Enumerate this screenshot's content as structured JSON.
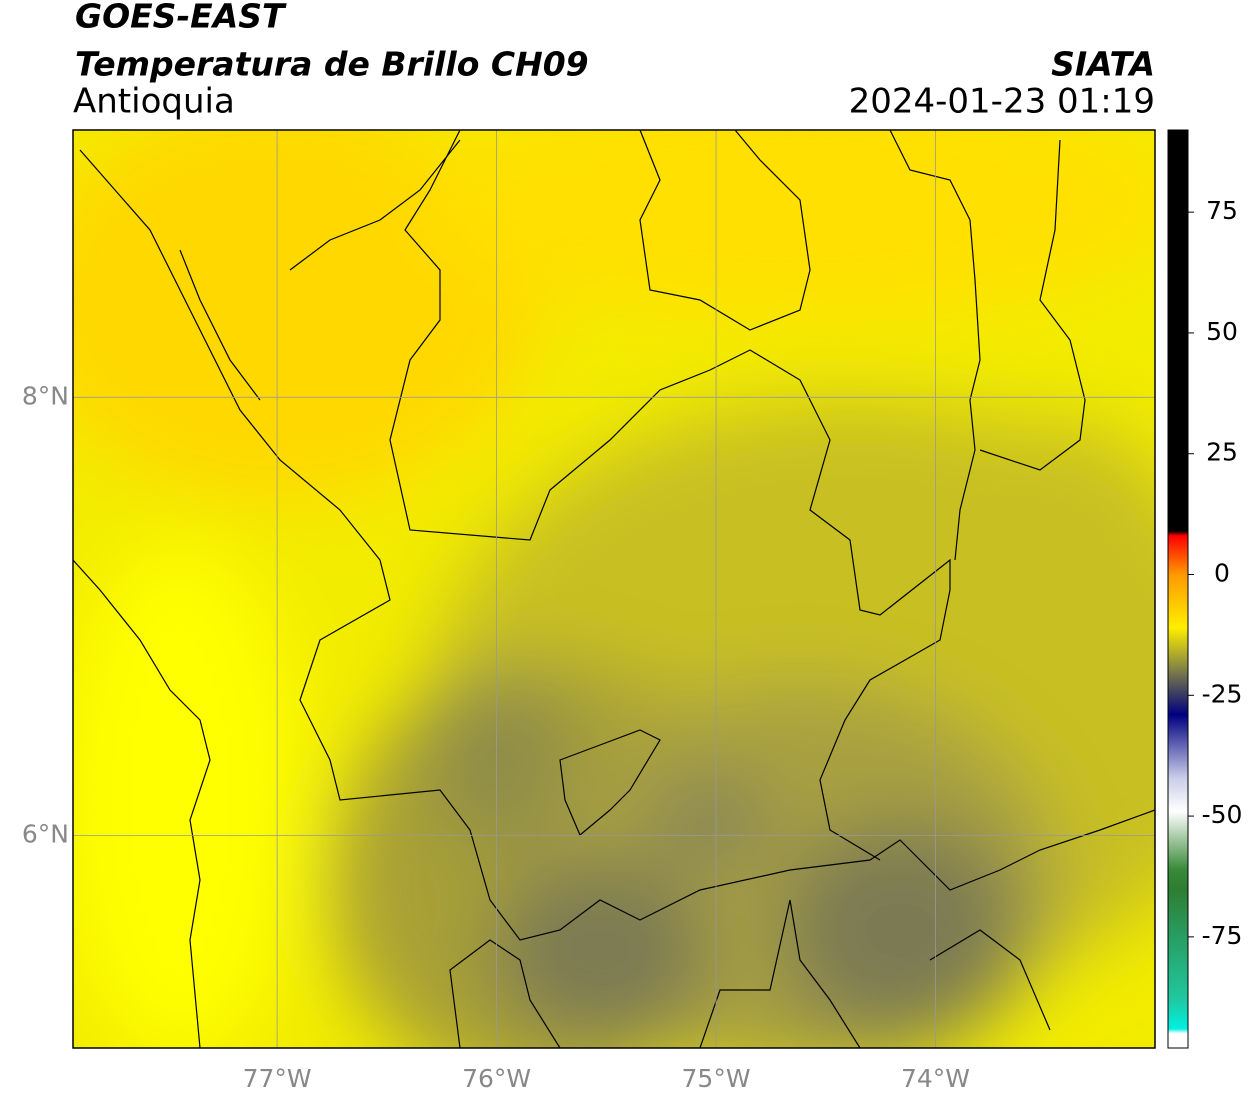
{
  "chart_data": {
    "type": "map",
    "title": "GOES-EAST",
    "subtitle": "Temperatura de Brillo CH09",
    "region": "Antioquia",
    "source": "SIATA",
    "datetime": "2024-01-23 01:19",
    "xlim": [
      -77.93,
      -73.0
    ],
    "ylim": [
      5.03,
      9.22
    ],
    "xticks": [
      {
        "value": -77,
        "label": "77°W"
      },
      {
        "value": -76,
        "label": "76°W"
      },
      {
        "value": -75,
        "label": "75°W"
      },
      {
        "value": -74,
        "label": "74°W"
      }
    ],
    "yticks": [
      {
        "value": 8,
        "label": "8°N"
      },
      {
        "value": 6,
        "label": "6°N"
      }
    ],
    "grid": true,
    "colorbar": {
      "lim": [
        -98,
        92
      ],
      "ticks": [
        75,
        50,
        25,
        0,
        -25,
        -50,
        -75
      ],
      "stops": [
        {
          "value": 92,
          "color": "#000000"
        },
        {
          "value": 9,
          "color": "#000000"
        },
        {
          "value": 8,
          "color": "#ff0000"
        },
        {
          "value": 0,
          "color": "#ff9900"
        },
        {
          "value": -11,
          "color": "#ffee00"
        },
        {
          "value": -19,
          "color": "#8a8a40"
        },
        {
          "value": -29,
          "color": "#000080"
        },
        {
          "value": -42,
          "color": "#c8cce8"
        },
        {
          "value": -49,
          "color": "#ffffff"
        },
        {
          "value": -61,
          "color": "#3a8a3a"
        },
        {
          "value": -65,
          "color": "#2e7d32"
        },
        {
          "value": -88,
          "color": "#20c8a0"
        },
        {
          "value": -94,
          "color": "#00f0e0"
        },
        {
          "value": -95,
          "color": "#ffffff"
        },
        {
          "value": -98,
          "color": "#ffffff"
        }
      ]
    }
  }
}
